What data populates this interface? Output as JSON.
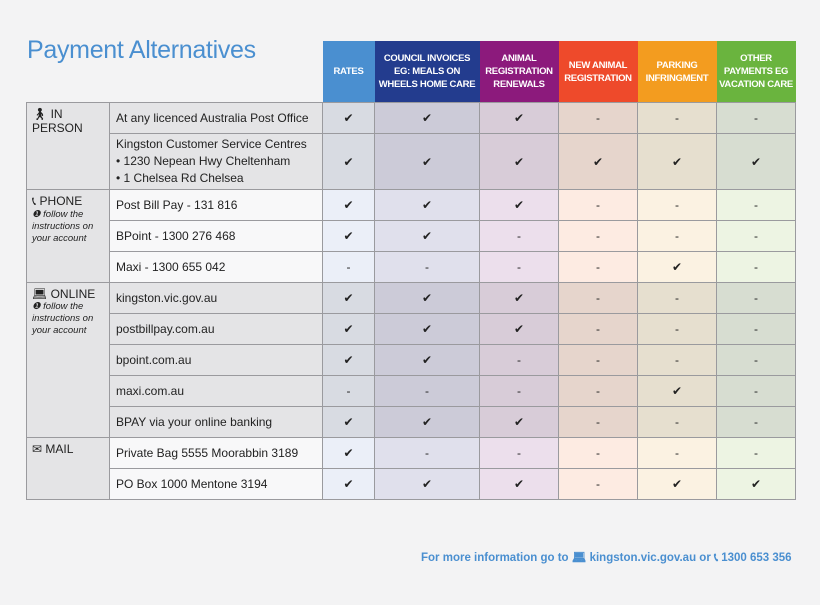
{
  "title": "Payment Alternatives",
  "columns": [
    {
      "label": "RATES",
      "color": "#4a8fd0",
      "light": "#ebeff8",
      "dark": "#d8dbe2"
    },
    {
      "label": "COUNCIL INVOICES EG: MEALS ON WHEELS HOME CARE",
      "color": "#233c8e",
      "light": "#e0e0ec",
      "dark": "#cccbd8"
    },
    {
      "label": "ANIMAL REGISTRATION RENEWALS",
      "color": "#8c1a7c",
      "light": "#ecdfec",
      "dark": "#d8ccd8"
    },
    {
      "label": "NEW ANIMAL REGISTRATION",
      "color": "#ee4a2b",
      "light": "#fdebe2",
      "dark": "#e6d5cc"
    },
    {
      "label": "PARKING INFRINGMENT",
      "color": "#f39c1f",
      "light": "#fbf2e2",
      "dark": "#e6dfcf"
    },
    {
      "label": "OTHER PAYMENTS EG VACATION CARE",
      "color": "#6ab43e",
      "light": "#edf4e3",
      "dark": "#d7ddd1"
    }
  ],
  "groups": [
    {
      "icon": "walking-person-icon",
      "label": "IN PERSON",
      "note": "",
      "shade": "dark",
      "rows": [
        {
          "lines": [
            "At any licenced Australia Post Office"
          ],
          "marks": [
            "✔",
            "✔",
            "✔",
            "-",
            "-",
            "-"
          ]
        },
        {
          "lines": [
            "Kingston Customer Service Centres",
            "• 1230 Nepean Hwy Cheltenham",
            "• 1 Chelsea Rd Chelsea"
          ],
          "marks": [
            "✔",
            "✔",
            "✔",
            "✔",
            "✔",
            "✔"
          ]
        }
      ]
    },
    {
      "icon": "phone-icon",
      "label": "PHONE",
      "note": "follow the instructions on your account",
      "shade": "light",
      "rows": [
        {
          "lines": [
            "Post Bill Pay - 131 816"
          ],
          "marks": [
            "✔",
            "✔",
            "✔",
            "-",
            "-",
            "-"
          ]
        },
        {
          "lines": [
            "BPoint - 1300 276 468"
          ],
          "marks": [
            "✔",
            "✔",
            "-",
            "-",
            "-",
            "-"
          ]
        },
        {
          "lines": [
            "Maxi - 1300 655 042"
          ],
          "marks": [
            "-",
            "-",
            "-",
            "-",
            "✔",
            "-"
          ]
        }
      ]
    },
    {
      "icon": "laptop-icon",
      "label": "ONLINE",
      "note": "follow the instructions on your account",
      "shade": "dark",
      "rows": [
        {
          "lines": [
            "kingston.vic.gov.au"
          ],
          "marks": [
            "✔",
            "✔",
            "✔",
            "-",
            "-",
            "-"
          ]
        },
        {
          "lines": [
            "postbillpay.com.au"
          ],
          "marks": [
            "✔",
            "✔",
            "✔",
            "-",
            "-",
            "-"
          ]
        },
        {
          "lines": [
            "bpoint.com.au"
          ],
          "marks": [
            "✔",
            "✔",
            "-",
            "-",
            "-",
            "-"
          ]
        },
        {
          "lines": [
            "maxi.com.au"
          ],
          "marks": [
            "-",
            "-",
            "-",
            "-",
            "✔",
            "-"
          ]
        },
        {
          "lines": [
            "BPAY via your online banking"
          ],
          "marks": [
            "✔",
            "✔",
            "✔",
            "-",
            "-",
            "-"
          ]
        }
      ]
    },
    {
      "icon": "envelope-icon",
      "label": "MAIL",
      "note": "",
      "shade": "light",
      "rows": [
        {
          "lines": [
            "Private Bag 5555 Moorabbin 3189"
          ],
          "marks": [
            "✔",
            "-",
            "-",
            "-",
            "-",
            "-"
          ]
        },
        {
          "lines": [
            "PO Box 1000 Mentone 3194"
          ],
          "marks": [
            "✔",
            "✔",
            "✔",
            "-",
            "✔",
            "✔"
          ]
        }
      ]
    }
  ],
  "footer": {
    "prefix": "For more information go to",
    "website": "kingston.vic.gov.au",
    "or": "or",
    "phone": "1300 653 356"
  }
}
